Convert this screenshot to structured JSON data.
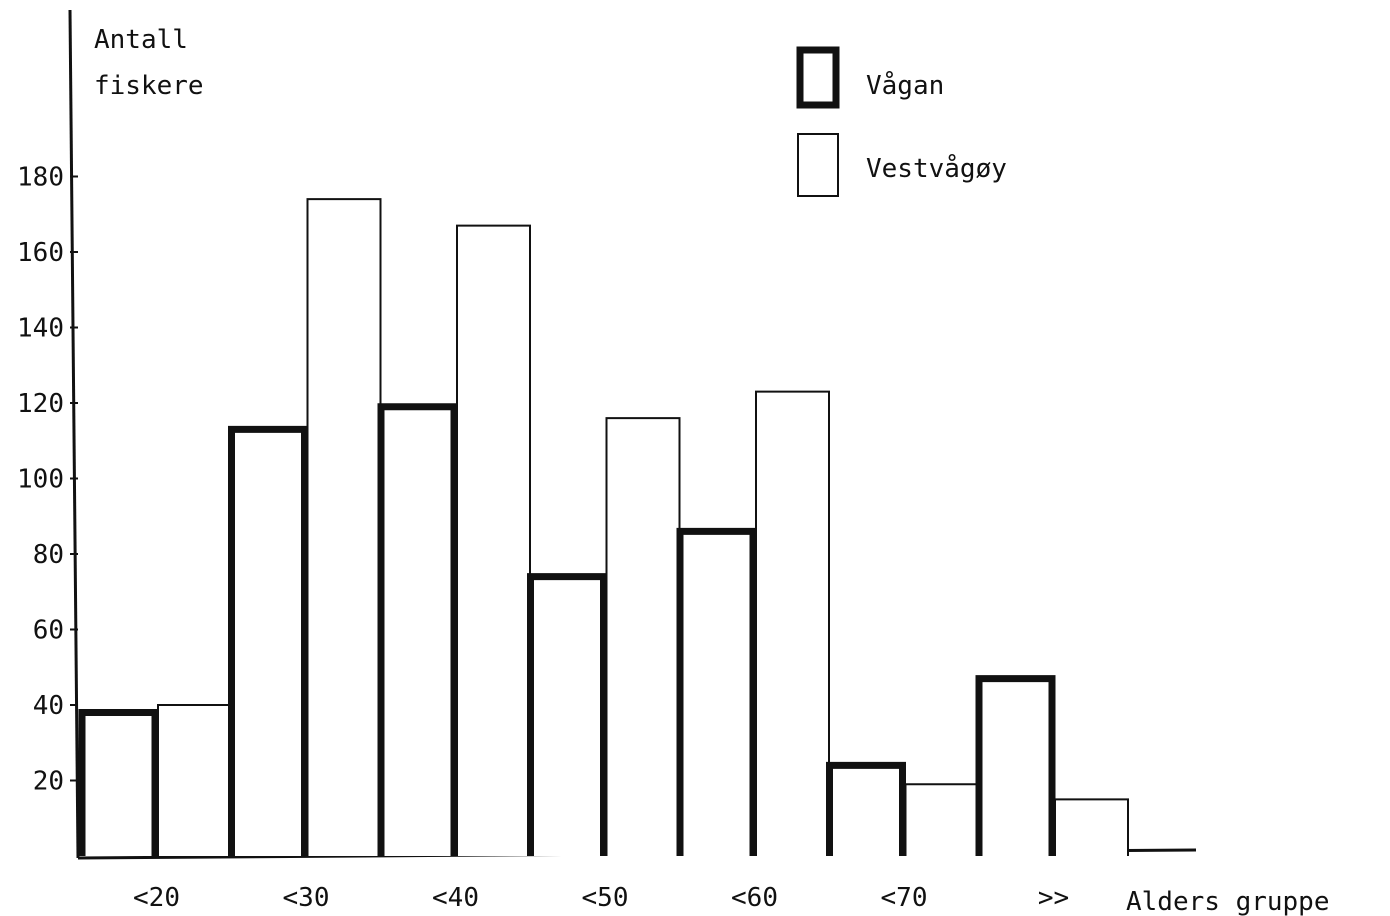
{
  "chart_data": {
    "type": "bar",
    "ylabel_lines": [
      "Antall",
      "fiskere"
    ],
    "xlabel": "Alders gruppe",
    "categories": [
      "<20",
      "<30",
      "<40",
      "<50",
      "<60",
      "<70",
      ">>"
    ],
    "yticks": [
      "20",
      "40",
      "60",
      "80",
      "100",
      "120",
      "140",
      "160",
      "180"
    ],
    "ylim": [
      0,
      180
    ],
    "grid": false,
    "legend_position": "top-right",
    "series": [
      {
        "name": "Vågan",
        "style": "thick-outline",
        "values": [
          38,
          113,
          119,
          74,
          86,
          24,
          47
        ]
      },
      {
        "name": "Vestvågøy",
        "style": "thin-outline",
        "values": [
          40,
          174,
          167,
          116,
          123,
          19,
          15
        ]
      }
    ]
  }
}
